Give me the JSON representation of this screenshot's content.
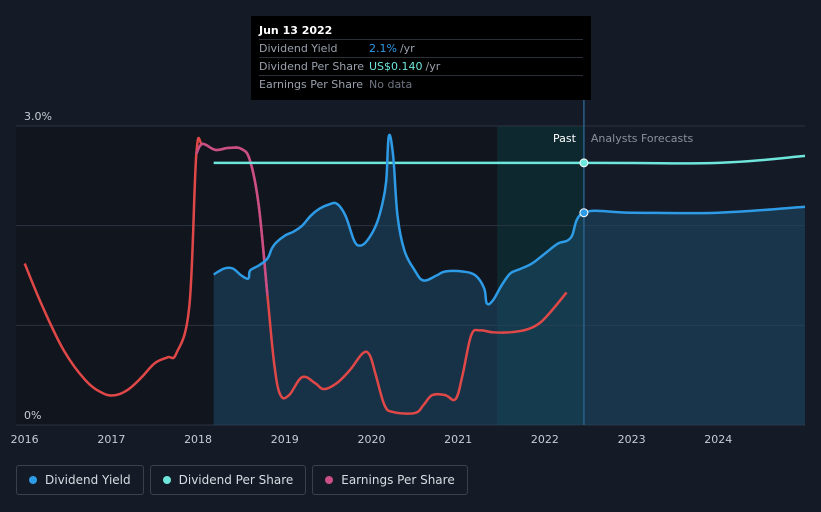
{
  "tooltip": {
    "date": "Jun 13 2022",
    "rows": [
      {
        "label": "Dividend Yield",
        "value": "2.1%",
        "unit": "/yr",
        "color": "#2e9be6"
      },
      {
        "label": "Dividend Per Share",
        "value": "US$0.140",
        "unit": "/yr",
        "color": "#6ee6dc"
      },
      {
        "label": "Earnings Per Share",
        "value": "No data",
        "unit": "",
        "color": "#6e7480"
      }
    ]
  },
  "regions": {
    "past": "Past",
    "forecast": "Analysts Forecasts"
  },
  "legend": [
    {
      "label": "Dividend Yield",
      "color": "#2e9be6"
    },
    {
      "label": "Dividend Per Share",
      "color": "#6ee6dc"
    },
    {
      "label": "Earnings Per Share",
      "color": "#c94f86"
    }
  ],
  "chart_data": {
    "type": "line",
    "xlim": [
      2015.9,
      2025.0
    ],
    "ylim": [
      0,
      3.0
    ],
    "y_ticks": [
      {
        "value": 3.0,
        "label": "3.0%"
      },
      {
        "value": 0,
        "label": "0%"
      }
    ],
    "x_ticks": [
      {
        "value": 2016,
        "label": "2016"
      },
      {
        "value": 2017,
        "label": "2017"
      },
      {
        "value": 2018,
        "label": "2018"
      },
      {
        "value": 2019,
        "label": "2019"
      },
      {
        "value": 2020,
        "label": "2020"
      },
      {
        "value": 2021,
        "label": "2021"
      },
      {
        "value": 2022,
        "label": "2022"
      },
      {
        "value": 2023,
        "label": "2023"
      },
      {
        "value": 2024,
        "label": "2024"
      }
    ],
    "grid": true,
    "past_end": 2022.45,
    "highlight_start": 2021.45,
    "series": [
      {
        "name": "Dividend Yield",
        "color": "#2e9be6",
        "fill": true,
        "points": [
          [
            2018.18,
            1.51
          ],
          [
            2018.3,
            1.57
          ],
          [
            2018.4,
            1.57
          ],
          [
            2018.5,
            1.5
          ],
          [
            2018.58,
            1.47
          ],
          [
            2018.6,
            1.55
          ],
          [
            2018.7,
            1.6
          ],
          [
            2018.8,
            1.67
          ],
          [
            2018.85,
            1.77
          ],
          [
            2018.9,
            1.83
          ],
          [
            2019.0,
            1.9
          ],
          [
            2019.1,
            1.94
          ],
          [
            2019.2,
            2.0
          ],
          [
            2019.3,
            2.1
          ],
          [
            2019.4,
            2.17
          ],
          [
            2019.5,
            2.21
          ],
          [
            2019.6,
            2.22
          ],
          [
            2019.7,
            2.1
          ],
          [
            2019.8,
            1.85
          ],
          [
            2019.87,
            1.8
          ],
          [
            2019.95,
            1.85
          ],
          [
            2020.05,
            2.0
          ],
          [
            2020.12,
            2.2
          ],
          [
            2020.17,
            2.45
          ],
          [
            2020.2,
            2.9
          ],
          [
            2020.25,
            2.7
          ],
          [
            2020.3,
            2.1
          ],
          [
            2020.38,
            1.75
          ],
          [
            2020.5,
            1.55
          ],
          [
            2020.6,
            1.45
          ],
          [
            2020.75,
            1.5
          ],
          [
            2020.85,
            1.54
          ],
          [
            2021.05,
            1.54
          ],
          [
            2021.2,
            1.5
          ],
          [
            2021.3,
            1.37
          ],
          [
            2021.33,
            1.22
          ],
          [
            2021.4,
            1.25
          ],
          [
            2021.5,
            1.4
          ],
          [
            2021.6,
            1.52
          ],
          [
            2021.7,
            1.56
          ],
          [
            2021.85,
            1.62
          ],
          [
            2022.0,
            1.72
          ],
          [
            2022.15,
            1.82
          ],
          [
            2022.3,
            1.88
          ],
          [
            2022.45,
            2.13
          ],
          [
            2023.0,
            2.13
          ],
          [
            2024.0,
            2.13
          ],
          [
            2025.0,
            2.19
          ]
        ]
      },
      {
        "name": "Dividend Per Share",
        "color": "#6ee6dc",
        "fill": false,
        "points": [
          [
            2018.18,
            2.63
          ],
          [
            2022.45,
            2.63
          ],
          [
            2024.0,
            2.63
          ],
          [
            2025.0,
            2.7
          ]
        ]
      },
      {
        "name": "Earnings Per Share",
        "color": "#e04848",
        "highlight_color": "#c94f86",
        "fill": false,
        "points": [
          [
            2016.0,
            1.62
          ],
          [
            2016.2,
            1.2
          ],
          [
            2016.45,
            0.75
          ],
          [
            2016.7,
            0.45
          ],
          [
            2016.9,
            0.32
          ],
          [
            2017.05,
            0.3
          ],
          [
            2017.2,
            0.36
          ],
          [
            2017.35,
            0.48
          ],
          [
            2017.5,
            0.62
          ],
          [
            2017.65,
            0.68
          ],
          [
            2017.75,
            0.72
          ],
          [
            2017.9,
            1.2
          ],
          [
            2017.98,
            2.72
          ],
          [
            2018.05,
            2.82
          ],
          [
            2018.2,
            2.76
          ],
          [
            2018.35,
            2.78
          ],
          [
            2018.5,
            2.77
          ],
          [
            2018.6,
            2.65
          ],
          [
            2018.7,
            2.2
          ],
          [
            2018.8,
            1.3
          ],
          [
            2018.88,
            0.6
          ],
          [
            2018.95,
            0.3
          ],
          [
            2019.05,
            0.3
          ],
          [
            2019.2,
            0.48
          ],
          [
            2019.35,
            0.42
          ],
          [
            2019.45,
            0.36
          ],
          [
            2019.6,
            0.42
          ],
          [
            2019.75,
            0.55
          ],
          [
            2019.9,
            0.72
          ],
          [
            2019.98,
            0.7
          ],
          [
            2020.05,
            0.5
          ],
          [
            2020.15,
            0.2
          ],
          [
            2020.25,
            0.13
          ],
          [
            2020.5,
            0.12
          ],
          [
            2020.6,
            0.2
          ],
          [
            2020.7,
            0.3
          ],
          [
            2020.85,
            0.3
          ],
          [
            2020.97,
            0.26
          ],
          [
            2021.05,
            0.5
          ],
          [
            2021.15,
            0.9
          ],
          [
            2021.25,
            0.95
          ],
          [
            2021.4,
            0.93
          ],
          [
            2021.6,
            0.93
          ],
          [
            2021.8,
            0.96
          ],
          [
            2021.95,
            1.03
          ],
          [
            2022.1,
            1.17
          ],
          [
            2022.25,
            1.33
          ]
        ]
      }
    ],
    "markers": [
      {
        "series": "Dividend Per Share",
        "x": 2022.45,
        "y": 2.63
      },
      {
        "series": "Dividend Yield",
        "x": 2022.45,
        "y": 2.13
      }
    ]
  }
}
